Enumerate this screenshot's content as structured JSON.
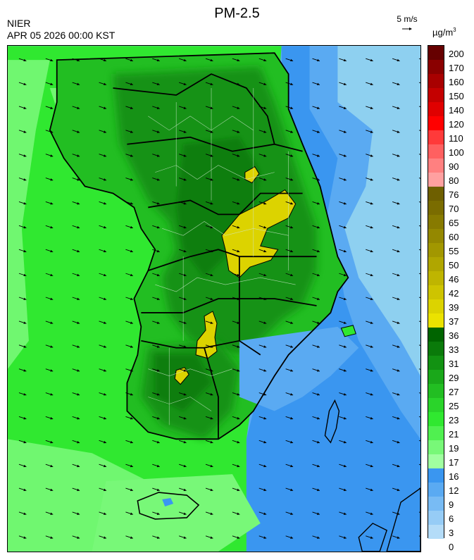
{
  "header": {
    "org": "NIER",
    "timestamp": "APR 05 2026 00:00 KST",
    "title": "PM-2.5",
    "wind_reference": "5 m/s",
    "unit_main": "µg/m",
    "unit_sup": "3"
  },
  "legend": {
    "labels": [
      "200",
      "170",
      "160",
      "150",
      "140",
      "120",
      "110",
      "100",
      "90",
      "80",
      "76",
      "70",
      "65",
      "60",
      "55",
      "50",
      "46",
      "42",
      "39",
      "37",
      "36",
      "33",
      "31",
      "29",
      "27",
      "25",
      "23",
      "21",
      "19",
      "17",
      "16",
      "12",
      "9",
      "6",
      "3",
      "0"
    ],
    "colors": [
      "#660000",
      "#8a0000",
      "#a80000",
      "#c40000",
      "#e00000",
      "#ff0000",
      "#ff3a3a",
      "#ff6060",
      "#ff8080",
      "#ffa0a0",
      "#6e5f00",
      "#7a6c00",
      "#877a00",
      "#948800",
      "#a29700",
      "#b0a600",
      "#bfb500",
      "#cec400",
      "#dcd300",
      "#ebe200",
      "#006400",
      "#0a7a0a",
      "#129212",
      "#1aa81a",
      "#22be22",
      "#2ad42a",
      "#30e830",
      "#50f050",
      "#78f878",
      "#a0ffa0",
      "#3a96f0",
      "#5aaaf2",
      "#78bbf4",
      "#96ccf6",
      "#b4dcf8"
    ],
    "map_colors": {
      "sea_east": "#8ed0f0",
      "sea_mid": "#5aaaf2",
      "sea_near": "#3a96f0",
      "west_sea_outer": "#30e830",
      "west_sea_inner": "#78f878",
      "land_base": "#22be22",
      "land_dark": "#129212",
      "land_darker": "#0a7a0a",
      "hotspot": "#dcd300"
    }
  },
  "wind": {
    "direction_deg": 18,
    "description": "arrows pointing east-southeast"
  }
}
